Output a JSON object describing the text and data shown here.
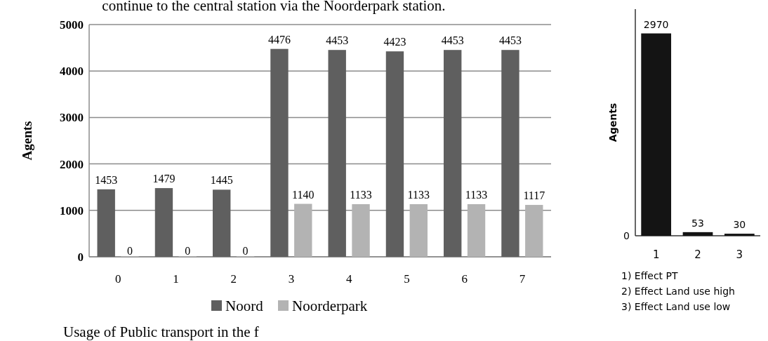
{
  "chart_data": [
    {
      "type": "bar",
      "categories": [
        "0",
        "1",
        "2",
        "3",
        "4",
        "5",
        "6",
        "7"
      ],
      "series": [
        {
          "name": "Noord",
          "color": "#5f5f5f",
          "values": [
            1453,
            1479,
            1445,
            4476,
            4453,
            4423,
            4453,
            4453
          ]
        },
        {
          "name": "Noorderpark",
          "color": "#b3b3b3",
          "values": [
            0,
            0,
            0,
            1140,
            1133,
            1133,
            1133,
            1117
          ]
        }
      ],
      "ylabel": "Agents",
      "ylim": [
        0,
        5000
      ],
      "yticks": [
        0,
        1000,
        2000,
        3000,
        4000,
        5000
      ],
      "grid": "y",
      "legend": "bottom",
      "data_labels": true,
      "annotations": [
        "continue to the central station via the Noorderpark station.",
        "Usage of Public transport in the f"
      ]
    },
    {
      "type": "bar",
      "categories": [
        "1",
        "2",
        "3"
      ],
      "values": [
        2970,
        53,
        30
      ],
      "color": "#141414",
      "ylabel": "Agents",
      "data_labels": true,
      "annotations": [
        "1) Effect PT",
        "2) Effect Land use high",
        "3) Effect Land use low",
        "0"
      ]
    }
  ]
}
